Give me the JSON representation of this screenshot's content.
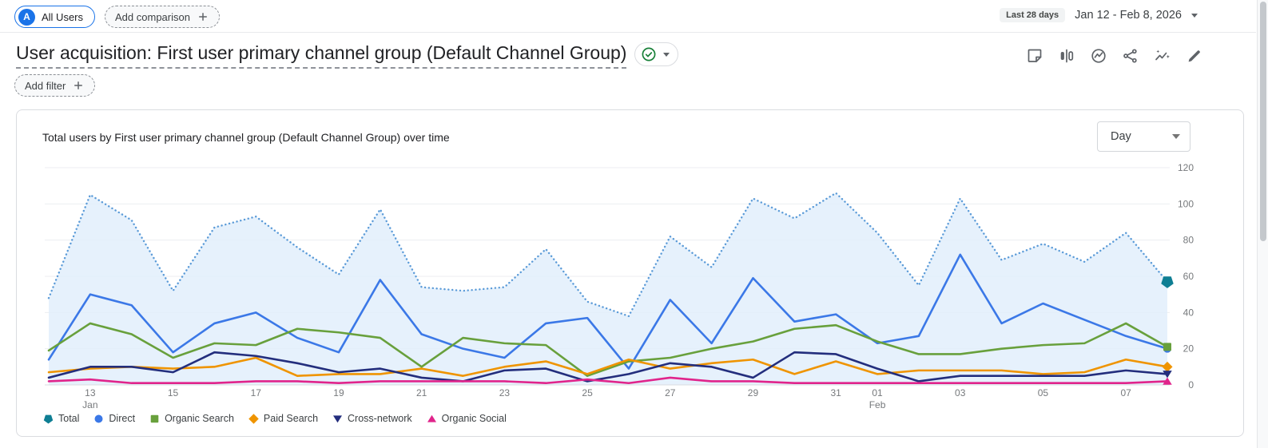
{
  "header": {
    "audience_chip": {
      "avatar_letter": "A",
      "label": "All Users"
    },
    "add_comparison_label": "Add comparison",
    "date_range": {
      "preset": "Last 28 days",
      "range": "Jan 12 - Feb 8, 2026"
    }
  },
  "report": {
    "title": "User acquisition: First user primary channel group (Default Channel Group)",
    "add_filter_label": "Add filter",
    "toolbar_icons": [
      "notes-icon",
      "compare-icon",
      "insights-icon",
      "share-icon",
      "sparkline-icon",
      "edit-icon"
    ],
    "verified_icon": "check-circle-icon",
    "verified_color": "#188038"
  },
  "card": {
    "title": "Total users by First user primary channel group (Default Channel Group) over time",
    "granularity": "Day"
  },
  "chart_data": {
    "type": "line",
    "title": "Total users by First user primary channel group (Default Channel Group) over time",
    "x_unit": "day",
    "x": [
      "Jan 12",
      "Jan 13",
      "Jan 14",
      "Jan 15",
      "Jan 16",
      "Jan 17",
      "Jan 18",
      "Jan 19",
      "Jan 20",
      "Jan 21",
      "Jan 22",
      "Jan 23",
      "Jan 24",
      "Jan 25",
      "Jan 26",
      "Jan 27",
      "Jan 28",
      "Jan 29",
      "Jan 30",
      "Jan 31",
      "Feb 1",
      "Feb 2",
      "Feb 3",
      "Feb 4",
      "Feb 5",
      "Feb 6",
      "Feb 7",
      "Feb 8"
    ],
    "x_tick_labels": [
      {
        "i": 1,
        "label": "13",
        "sub": "Jan"
      },
      {
        "i": 3,
        "label": "15"
      },
      {
        "i": 5,
        "label": "17"
      },
      {
        "i": 7,
        "label": "19"
      },
      {
        "i": 9,
        "label": "21"
      },
      {
        "i": 11,
        "label": "23"
      },
      {
        "i": 13,
        "label": "25"
      },
      {
        "i": 15,
        "label": "27"
      },
      {
        "i": 17,
        "label": "29"
      },
      {
        "i": 19,
        "label": "31"
      },
      {
        "i": 20,
        "label": "01",
        "sub": "Feb"
      },
      {
        "i": 22,
        "label": "03"
      },
      {
        "i": 24,
        "label": "05"
      },
      {
        "i": 26,
        "label": "07"
      }
    ],
    "ylim": [
      0,
      120
    ],
    "yticks": [
      0,
      20,
      40,
      60,
      80,
      100,
      120
    ],
    "grid": "horizontal",
    "legend_position": "bottom",
    "series": [
      {
        "name": "Total",
        "marker": "pentagon-down",
        "style": "dotted",
        "color": "#0e7e93",
        "line_color": "#5b9bd8",
        "fill_color": "#e2eefb",
        "values": [
          48,
          105,
          91,
          52,
          87,
          93,
          76,
          61,
          97,
          54,
          52,
          54,
          75,
          46,
          38,
          82,
          65,
          103,
          92,
          106,
          84,
          55,
          103,
          69,
          78,
          68,
          84,
          57
        ]
      },
      {
        "name": "Direct",
        "marker": "circle",
        "style": "solid",
        "color": "#3b78e7",
        "values": [
          14,
          50,
          44,
          18,
          34,
          40,
          26,
          18,
          58,
          28,
          20,
          15,
          34,
          37,
          9,
          47,
          23,
          59,
          35,
          39,
          23,
          27,
          72,
          34,
          45,
          36,
          27,
          20
        ]
      },
      {
        "name": "Organic Search",
        "marker": "square",
        "style": "solid",
        "color": "#68a03c",
        "values": [
          19,
          34,
          28,
          15,
          23,
          22,
          31,
          29,
          26,
          10,
          26,
          23,
          22,
          5,
          13,
          15,
          20,
          24,
          31,
          33,
          24,
          17,
          17,
          20,
          22,
          23,
          34,
          21
        ]
      },
      {
        "name": "Paid Search",
        "marker": "diamond",
        "style": "solid",
        "color": "#ef9400",
        "values": [
          7,
          9,
          10,
          9,
          10,
          15,
          5,
          6,
          6,
          9,
          5,
          10,
          13,
          6,
          14,
          9,
          12,
          14,
          6,
          13,
          6,
          8,
          8,
          8,
          6,
          7,
          14,
          10
        ]
      },
      {
        "name": "Cross-network",
        "marker": "triangle-down",
        "style": "solid",
        "color": "#232e7d",
        "values": [
          4,
          10,
          10,
          7,
          18,
          16,
          12,
          7,
          9,
          4,
          2,
          8,
          9,
          2,
          6,
          12,
          10,
          4,
          18,
          17,
          9,
          2,
          5,
          5,
          5,
          5,
          8,
          6
        ]
      },
      {
        "name": "Organic Social",
        "marker": "triangle-up",
        "style": "solid",
        "color": "#e0248b",
        "values": [
          2,
          3,
          1,
          1,
          1,
          2,
          2,
          1,
          2,
          2,
          2,
          2,
          1,
          3,
          1,
          4,
          2,
          2,
          1,
          1,
          1,
          1,
          1,
          1,
          1,
          1,
          1,
          2
        ]
      }
    ]
  }
}
